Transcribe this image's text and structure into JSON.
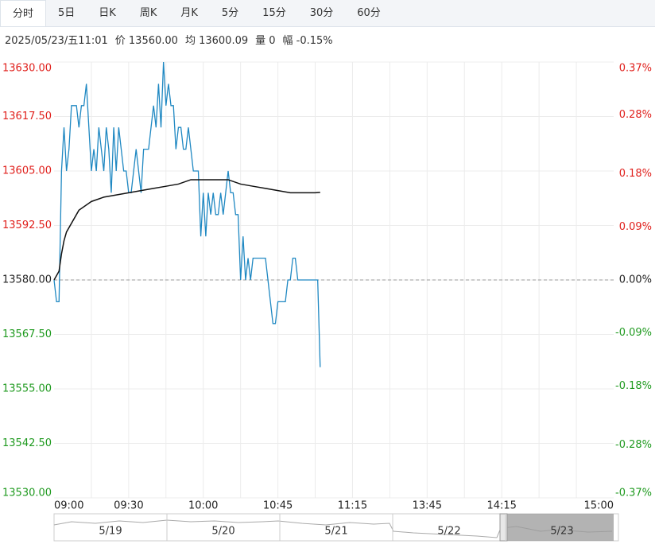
{
  "tabs": [
    "分时",
    "5日",
    "日K",
    "周K",
    "月K",
    "5分",
    "15分",
    "30分",
    "60分"
  ],
  "info": [
    "2025/05/23/五11:01",
    "价 13560.00",
    "均 13600.09",
    "量 0",
    "幅 -0.15%"
  ],
  "chart_data": {
    "type": "line",
    "x": [
      0,
      1,
      2,
      3,
      4,
      5,
      6,
      7,
      8,
      9,
      10,
      11,
      12,
      13,
      14,
      15,
      16,
      17,
      18,
      19,
      20,
      21,
      22,
      23,
      24,
      25,
      26,
      27,
      28,
      29,
      30,
      31,
      32,
      33,
      34,
      35,
      36,
      37,
      38,
      39,
      40,
      41,
      42,
      43,
      44,
      45,
      46,
      47,
      48,
      49,
      50,
      51,
      52,
      53,
      54,
      55,
      56,
      57,
      58,
      59,
      60,
      61,
      62,
      63,
      64,
      65,
      66,
      67,
      68,
      69,
      70,
      71,
      72,
      73,
      74,
      75,
      76,
      77,
      78,
      79,
      80,
      81,
      82,
      83,
      84,
      85,
      86,
      87,
      88,
      89,
      90,
      91,
      92,
      93,
      94,
      95,
      96,
      97,
      98,
      99,
      100,
      101,
      102,
      103,
      104,
      105,
      106,
      107
    ],
    "series": [
      {
        "color": "#1f88c2",
        "values": [
          13580,
          13575,
          13575,
          13605,
          13615,
          13605,
          13610,
          13620,
          13620,
          13620,
          13615,
          13620,
          13620,
          13625,
          13615,
          13605,
          13610,
          13605,
          13615,
          13610,
          13605,
          13615,
          13610,
          13600,
          13615,
          13605,
          13615,
          13610,
          13605,
          13605,
          13600,
          13600,
          13605,
          13610,
          13605,
          13600,
          13610,
          13610,
          13610,
          13615,
          13620,
          13615,
          13625,
          13615,
          13630,
          13620,
          13625,
          13620,
          13620,
          13610,
          13615,
          13615,
          13610,
          13610,
          13615,
          13610,
          13605,
          13605,
          13605,
          13590,
          13600,
          13590,
          13600,
          13595,
          13600,
          13595,
          13595,
          13600,
          13595,
          13600,
          13605,
          13600,
          13600,
          13595,
          13595,
          13580,
          13590,
          13580,
          13585,
          13580,
          13585,
          13585,
          13585,
          13585,
          13585,
          13585,
          13580,
          13575,
          13570,
          13570,
          13575,
          13575,
          13575,
          13575,
          13580,
          13580,
          13585,
          13585,
          13580,
          13580,
          13580,
          13580,
          13580,
          13580,
          13580,
          13580,
          13580,
          13560
        ]
      },
      {
        "color": "#111111",
        "x": [
          0,
          1,
          2,
          3,
          4,
          5,
          10,
          15,
          20,
          25,
          30,
          35,
          40,
          45,
          50,
          55,
          60,
          65,
          70,
          75,
          80,
          85,
          90,
          95,
          100,
          105,
          107
        ],
        "values": [
          13580,
          13581,
          13582,
          13586,
          13589,
          13591,
          13596,
          13598,
          13599,
          13599.5,
          13600,
          13600.5,
          13601,
          13601.5,
          13602,
          13603,
          13603,
          13603,
          13603,
          13602,
          13601.5,
          13601,
          13600.5,
          13600,
          13600,
          13600,
          13600.09
        ]
      }
    ],
    "xlim": [
      0,
      225
    ],
    "xticks": [
      {
        "value": 0,
        "label": "09:00"
      },
      {
        "value": 30,
        "label": "09:30"
      },
      {
        "value": 60,
        "label": "10:00"
      },
      {
        "value": 90,
        "label": "10:45"
      },
      {
        "value": 120,
        "label": "11:15"
      },
      {
        "value": 150,
        "label": "13:45"
      },
      {
        "value": 180,
        "label": "14:15"
      },
      {
        "value": 225,
        "label": "15:00"
      }
    ],
    "xgrid": [
      15,
      30,
      45,
      60,
      75,
      90,
      105,
      120,
      135,
      150,
      165,
      180,
      195,
      210
    ],
    "ylim": [
      13530,
      13630
    ],
    "yticks": [
      {
        "value": 13630,
        "label": "13630.00"
      },
      {
        "value": 13617.5,
        "label": "13617.50"
      },
      {
        "value": 13605,
        "label": "13605.00"
      },
      {
        "value": 13592.5,
        "label": "13592.50"
      },
      {
        "value": 13580,
        "label": "13580.00"
      },
      {
        "value": 13567.5,
        "label": "13567.50"
      },
      {
        "value": 13555,
        "label": "13555.00"
      },
      {
        "value": 13542.5,
        "label": "13542.50"
      },
      {
        "value": 13530,
        "label": "13530.00"
      }
    ],
    "y2lim": [
      -0.37,
      0.37
    ],
    "y2ticks": [
      {
        "value": 0.37,
        "label": "0.37%"
      },
      {
        "value": 0.28,
        "label": "0.28%"
      },
      {
        "value": 0.18,
        "label": "0.18%"
      },
      {
        "value": 0.09,
        "label": "0.09%"
      },
      {
        "value": 0,
        "label": "0.00%"
      },
      {
        "value": -0.09,
        "label": "-0.09%"
      },
      {
        "value": -0.18,
        "label": "-0.18%"
      },
      {
        "value": -0.28,
        "label": "-0.28%"
      },
      {
        "value": -0.37,
        "label": "-0.37%"
      }
    ],
    "baseline": 13580,
    "up_color": "#e0201c",
    "down_color": "#1f9a1f",
    "flat_color": "#222222",
    "grid": true,
    "navigator": [
      "5/19",
      "5/20",
      "5/21",
      "5/22",
      "5/23"
    ]
  }
}
